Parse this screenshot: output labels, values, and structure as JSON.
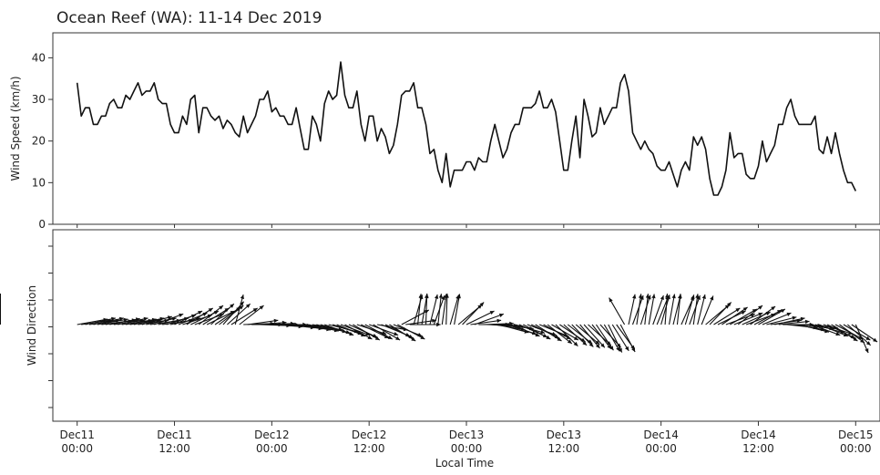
{
  "chart_data": [
    {
      "type": "line",
      "title": "Ocean Reef (WA): 11-14 Dec 2019",
      "xlabel": "",
      "ylabel": "Wind Speed (km/h)",
      "x_unit": "hours since Dec11 00:00",
      "xlim": [
        -3,
        99
      ],
      "ylim": [
        0,
        46
      ],
      "y_ticks": [
        "0",
        "10",
        "20",
        "30",
        "40"
      ],
      "grid": false,
      "series": [
        {
          "x": [
            0,
            0.5,
            1,
            1.5,
            2,
            2.5,
            3,
            3.5,
            4,
            4.5,
            5,
            5.5,
            6,
            6.5,
            7,
            7.5,
            8,
            8.5,
            9,
            9.5,
            10,
            10.5,
            11,
            11.5,
            12,
            12.5,
            13,
            13.5,
            14,
            14.5,
            15,
            15.5,
            16,
            16.5,
            17,
            17.5,
            18,
            18.5,
            19,
            19.5,
            20,
            20.5,
            21,
            21.5,
            22,
            22.5,
            23,
            23.5,
            24,
            24.5,
            25,
            25.5,
            26,
            26.5,
            27,
            27.5,
            28,
            28.5,
            29,
            29.5,
            30,
            30.5,
            31,
            31.5,
            32,
            32.5,
            33,
            33.5,
            34,
            34.5,
            35,
            35.5,
            36,
            36.5,
            37,
            37.5,
            38,
            38.5,
            39,
            39.5,
            40,
            40.5,
            41,
            41.5,
            42,
            42.5,
            43,
            43.5,
            44,
            44.5,
            45,
            45.5,
            46,
            46.5,
            47,
            47.5,
            48,
            48.5,
            49,
            49.5,
            50,
            50.5,
            51,
            51.5,
            52,
            52.5,
            53,
            53.5,
            54,
            54.5,
            55,
            55.5,
            56,
            56.5,
            57,
            57.5,
            58,
            58.5,
            59,
            59.5,
            60,
            60.5,
            61,
            61.5,
            62,
            62.5,
            63,
            63.5,
            64,
            64.5,
            65,
            65.5,
            66,
            66.5,
            67,
            67.5,
            68,
            68.5,
            69,
            69.5,
            70,
            70.5,
            71,
            71.5,
            72,
            72.5,
            73,
            73.5,
            74,
            74.5,
            75,
            75.5,
            76,
            76.5,
            77,
            77.5,
            78,
            78.5,
            79,
            79.5,
            80,
            80.5,
            81,
            81.5,
            82,
            82.5,
            83,
            83.5,
            84,
            84.5,
            85,
            85.5,
            86,
            86.5,
            87,
            87.5,
            88,
            88.5,
            89,
            89.5,
            90,
            90.5,
            91,
            91.5,
            92,
            92.5,
            93,
            93.5,
            94,
            94.5,
            95,
            95.5,
            96
          ],
          "values": [
            34,
            26,
            28,
            28,
            24,
            24,
            26,
            26,
            29,
            30,
            28,
            28,
            31,
            30,
            32,
            34,
            31,
            32,
            32,
            34,
            30,
            29,
            29,
            24,
            22,
            22,
            26,
            24,
            30,
            31,
            22,
            28,
            28,
            26,
            25,
            26,
            23,
            25,
            24,
            22,
            21,
            26,
            22,
            24,
            26,
            30,
            30,
            32,
            27,
            28,
            26,
            26,
            24,
            24,
            28,
            23,
            18,
            18,
            26,
            24,
            20,
            29,
            32,
            30,
            31,
            39,
            31,
            28,
            28,
            32,
            24,
            20,
            26,
            26,
            20,
            23,
            21,
            17,
            19,
            24,
            31,
            32,
            32,
            34,
            28,
            28,
            24,
            17,
            18,
            13,
            10,
            17,
            9,
            13,
            13,
            13,
            15,
            15,
            13,
            16,
            15,
            15,
            20,
            24,
            20,
            16,
            18,
            22,
            24,
            24,
            28,
            28,
            28,
            29,
            32,
            28,
            28,
            30,
            27,
            20,
            13,
            13,
            20,
            26,
            16,
            30,
            26,
            21,
            22,
            28,
            24,
            26,
            28,
            28,
            34,
            36,
            32,
            22,
            20,
            18,
            20,
            18,
            17,
            14,
            13,
            13,
            15,
            12,
            9,
            13,
            15,
            13,
            21,
            19,
            21,
            18,
            11,
            7,
            7,
            9,
            13,
            22,
            16,
            17,
            17,
            12,
            11,
            11,
            14,
            20,
            15,
            17,
            19,
            24,
            24,
            28,
            30,
            26,
            24,
            24,
            24,
            24,
            26,
            18,
            17,
            21,
            17,
            22,
            17,
            13,
            10,
            10,
            8
          ]
        }
      ]
    },
    {
      "type": "scatter",
      "title": "",
      "xlabel": "Local Time",
      "ylabel": "Wind Direction",
      "xlim": [
        -3,
        99
      ],
      "x_ticks": [
        {
          "x": 0,
          "line1": "Dec11",
          "line2": "00:00"
        },
        {
          "x": 12,
          "line1": "Dec11",
          "line2": "12:00"
        },
        {
          "x": 24,
          "line1": "Dec12",
          "line2": "00:00"
        },
        {
          "x": 36,
          "line1": "Dec12",
          "line2": "12:00"
        },
        {
          "x": 48,
          "line1": "Dec13",
          "line2": "00:00"
        },
        {
          "x": 60,
          "line1": "Dec13",
          "line2": "12:00"
        },
        {
          "x": 72,
          "line1": "Dec14",
          "line2": "00:00"
        },
        {
          "x": 84,
          "line1": "Dec14",
          "line2": "12:00"
        },
        {
          "x": 96,
          "line1": "Dec15",
          "line2": "00:00"
        }
      ],
      "y_ticks_count": 7,
      "arrow_direction_deg": [
        260,
        262,
        258,
        262,
        258,
        260,
        263,
        261,
        259,
        262,
        258,
        262,
        260,
        262,
        258,
        262,
        255,
        258,
        262,
        250,
        258,
        262,
        252,
        258,
        244,
        248,
        252,
        238,
        244,
        250,
        232,
        238,
        244,
        228,
        236,
        232,
        222,
        228,
        238,
        195,
        232,
        268,
        262,
        270,
        266,
        272,
        268,
        270,
        274,
        270,
        272,
        276,
        274,
        278,
        276,
        280,
        278,
        282,
        280,
        284,
        286,
        290,
        284,
        288,
        292,
        290,
        298,
        294,
        300,
        288,
        296,
        298,
        290,
        300,
        280,
        292,
        296,
        302,
        292,
        298,
        242,
        262,
        270,
        196,
        186,
        190,
        182,
        194,
        200,
        186,
        188,
        182,
        196,
        190,
        230,
        224,
        244,
        262,
        250,
        270,
        268,
        272,
        275,
        280,
        285,
        278,
        288,
        292,
        286,
        294,
        298,
        290,
        296,
        302,
        292,
        298,
        308,
        300,
        314,
        304,
        312,
        308,
        316,
        310,
        320,
        318,
        312,
        322,
        326,
        318,
        330,
        334,
        328,
        324,
        332,
        150,
        192,
        200,
        188,
        198,
        186,
        190,
        200,
        202,
        196,
        184,
        190,
        194,
        186,
        204,
        196,
        200,
        188,
        194,
        202,
        230,
        224,
        238,
        244,
        236,
        250,
        240,
        248,
        232,
        246,
        250,
        234,
        242,
        240,
        248,
        256,
        262,
        258,
        264,
        270,
        276,
        272,
        280,
        284,
        278,
        276,
        290,
        286,
        292,
        288,
        296,
        302,
        298,
        306,
        300,
        312,
        304,
        336,
        208,
        202,
        196,
        186,
        190,
        194,
        200,
        192,
        198,
        205,
        190,
        182,
        188,
        184,
        186,
        180,
        182,
        186,
        184,
        180,
        182,
        180,
        182,
        180,
        182,
        180,
        182,
        180,
        182,
        180,
        182,
        180,
        182,
        180,
        182,
        180,
        182,
        180,
        182
      ]
    }
  ]
}
